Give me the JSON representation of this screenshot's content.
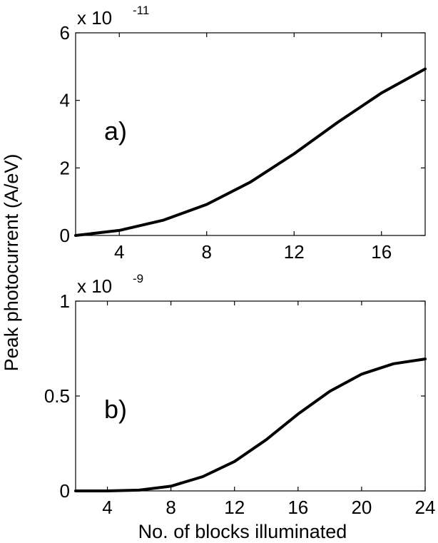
{
  "figure": {
    "ylabel": "Peak photocurrent (A/eV)",
    "xlabel": "No. of blocks illuminated"
  },
  "chart_data": [
    {
      "type": "line",
      "panel_label": "a)",
      "exponent_base": "x 10",
      "exponent_power": "-11",
      "xlim": [
        2,
        18
      ],
      "ylim": [
        0,
        6
      ],
      "x_ticks": [
        4,
        8,
        12,
        16
      ],
      "y_ticks": [
        0,
        2,
        4,
        6
      ],
      "x_tick_labels": [
        "4",
        "8",
        "12",
        "16"
      ],
      "y_tick_labels": [
        "0",
        "2",
        "4",
        "6"
      ],
      "grid": false,
      "line_color": "#000000",
      "series": [
        {
          "x": [
            2,
            4,
            6,
            8,
            10,
            12,
            14,
            16,
            18
          ],
          "y": [
            0.0,
            0.15,
            0.45,
            0.92,
            1.58,
            2.42,
            3.35,
            4.22,
            4.93
          ]
        }
      ]
    },
    {
      "type": "line",
      "panel_label": "b)",
      "exponent_base": "x 10",
      "exponent_power": "-9",
      "xlim": [
        2,
        24
      ],
      "ylim": [
        0,
        1
      ],
      "x_ticks": [
        4,
        8,
        12,
        16,
        20,
        24
      ],
      "y_ticks": [
        0,
        0.5,
        1
      ],
      "x_tick_labels": [
        "4",
        "8",
        "12",
        "16",
        "20",
        "24"
      ],
      "y_tick_labels": [
        "0",
        "0.5",
        "1"
      ],
      "grid": false,
      "line_color": "#000000",
      "series": [
        {
          "x": [
            2,
            4,
            6,
            8,
            10,
            12,
            14,
            16,
            18,
            20,
            22,
            24
          ],
          "y": [
            0.0,
            0.0,
            0.004,
            0.025,
            0.075,
            0.155,
            0.27,
            0.405,
            0.525,
            0.615,
            0.67,
            0.695
          ]
        }
      ]
    }
  ]
}
